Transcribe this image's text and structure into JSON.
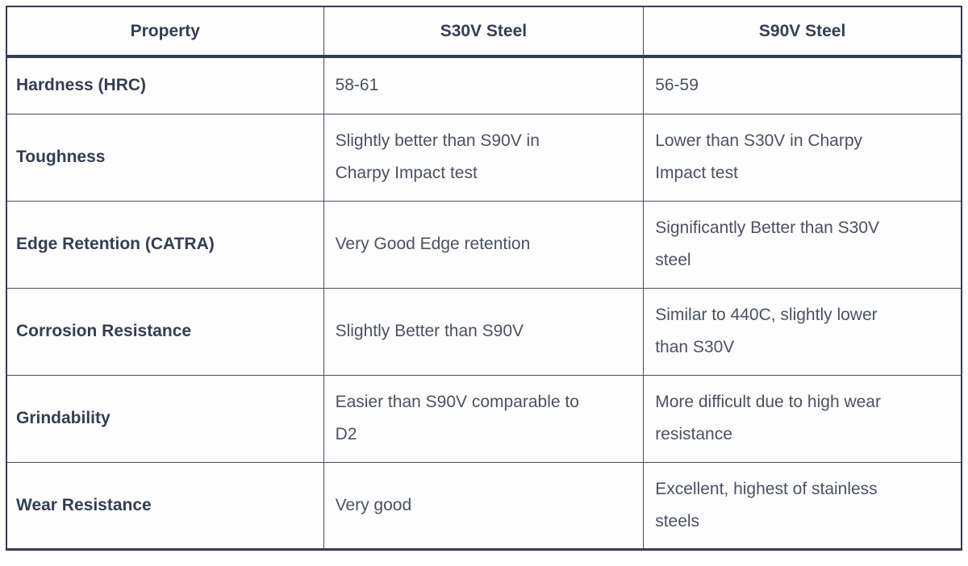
{
  "table": {
    "columns": [
      "Property",
      "S30V Steel",
      "S90V Steel"
    ],
    "rows": [
      {
        "property": "Hardness (HRC)",
        "s30v": "58-61",
        "s90v": "56-59"
      },
      {
        "property": "Toughness",
        "s30v": "Slightly better than S90V in\nCharpy Impact test",
        "s90v": "Lower than S30V in Charpy\nImpact test"
      },
      {
        "property": "Edge Retention (CATRA)",
        "s30v": "Very Good Edge retention",
        "s90v": "Significantly Better than S30V\nsteel"
      },
      {
        "property": "Corrosion Resistance",
        "s30v": "Slightly Better than S90V",
        "s90v": "Similar to 440C, slightly lower\nthan S30V"
      },
      {
        "property": "Grindability",
        "s30v": "Easier than S90V comparable to\nD2",
        "s90v": "More difficult due to high wear\nresistance"
      },
      {
        "property": "Wear Resistance",
        "s30v": "Very good",
        "s90v": "Excellent, highest of stainless\nsteels"
      }
    ],
    "colors": {
      "border": "#333e50",
      "header_text": "#333e52",
      "body_text": "#4a5260",
      "cell_background": "#fdfdfd"
    }
  }
}
